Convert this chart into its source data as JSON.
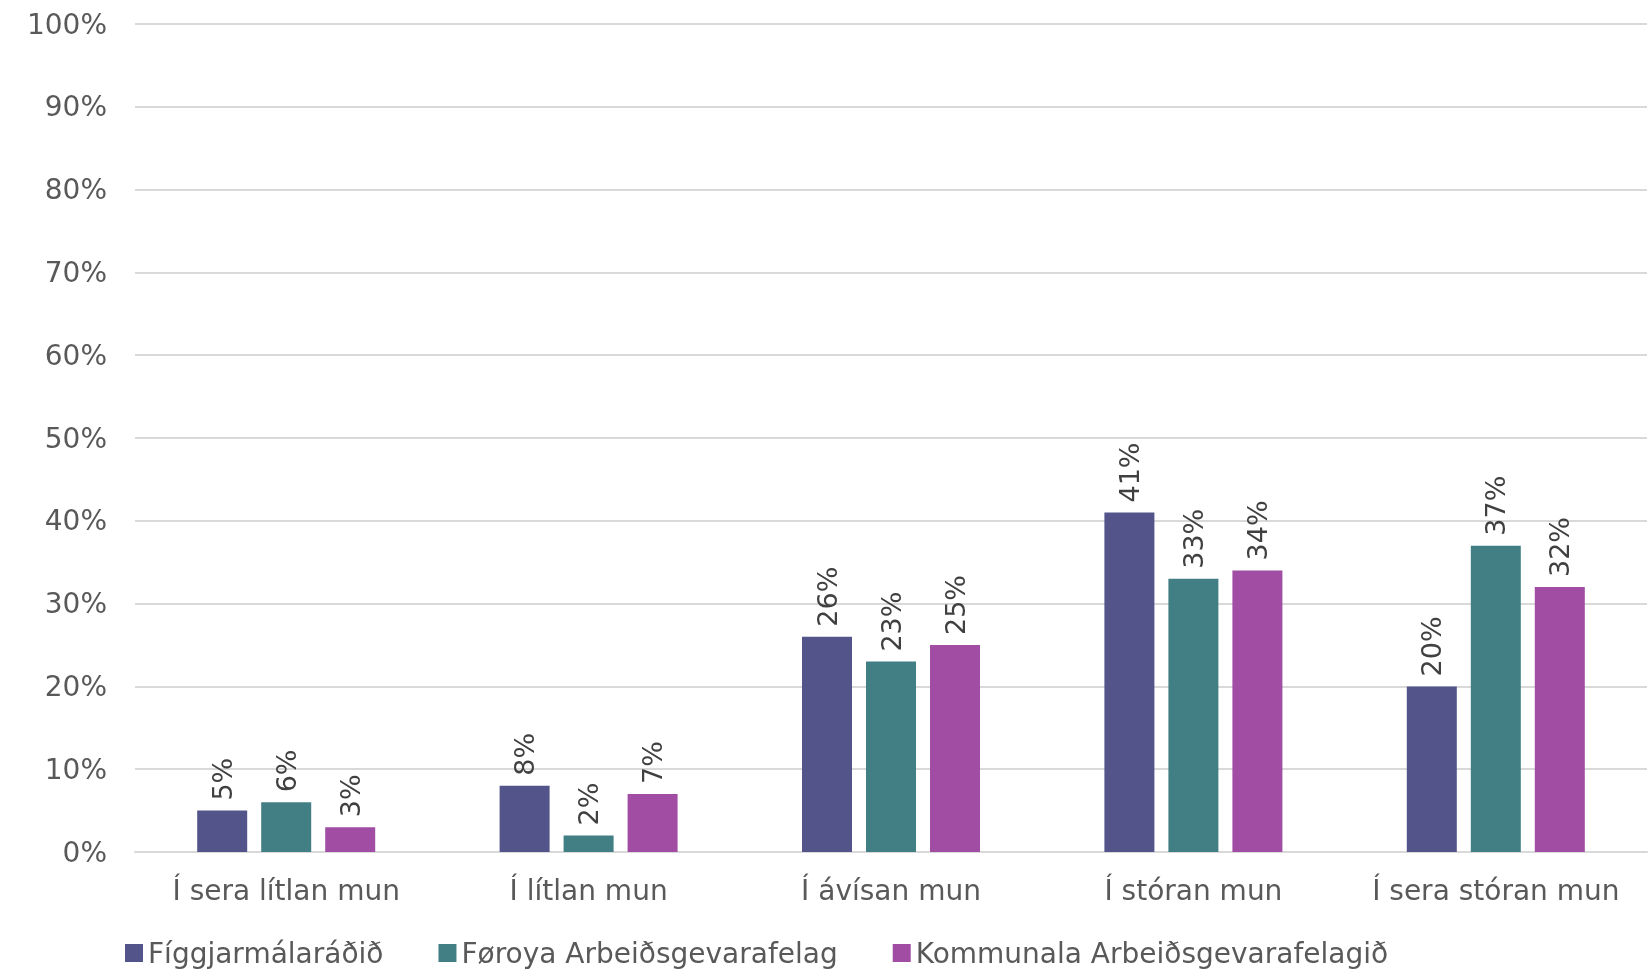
{
  "chart_data": {
    "type": "bar",
    "categories": [
      "Í sera lítlan mun",
      "Í lítlan mun",
      "Í ávísan mun",
      "Í stóran mun",
      "Í sera stóran mun"
    ],
    "series": [
      {
        "name": "Fíggjarmálaráðið",
        "color": "#52548a",
        "values": [
          5,
          8,
          26,
          41,
          20
        ],
        "value_labels": [
          "5%",
          "8%",
          "26%",
          "41%",
          "20%"
        ]
      },
      {
        "name": "Føroya Arbeiðsgevarafelag",
        "color": "#427f84",
        "values": [
          6,
          2,
          23,
          33,
          37
        ],
        "value_labels": [
          "6%",
          "2%",
          "23%",
          "33%",
          "37%"
        ]
      },
      {
        "name": "Kommunala Arbeiðsgevarafelagið",
        "color": "#a04da3",
        "values": [
          3,
          7,
          25,
          34,
          32
        ],
        "value_labels": [
          "3%",
          "7%",
          "25%",
          "34%",
          "32%"
        ]
      }
    ],
    "ylim": [
      0,
      100
    ],
    "yticks": [
      {
        "value": 0,
        "label": "0%"
      },
      {
        "value": 10,
        "label": "10%"
      },
      {
        "value": 20,
        "label": "20%"
      },
      {
        "value": 30,
        "label": "30%"
      },
      {
        "value": 40,
        "label": "40%"
      },
      {
        "value": 50,
        "label": "50%"
      },
      {
        "value": 60,
        "label": "60%"
      },
      {
        "value": 70,
        "label": "70%"
      },
      {
        "value": 80,
        "label": "80%"
      },
      {
        "value": 90,
        "label": "90%"
      },
      {
        "value": 100,
        "label": "100%"
      }
    ],
    "grid": "y",
    "legend": "bottom"
  }
}
